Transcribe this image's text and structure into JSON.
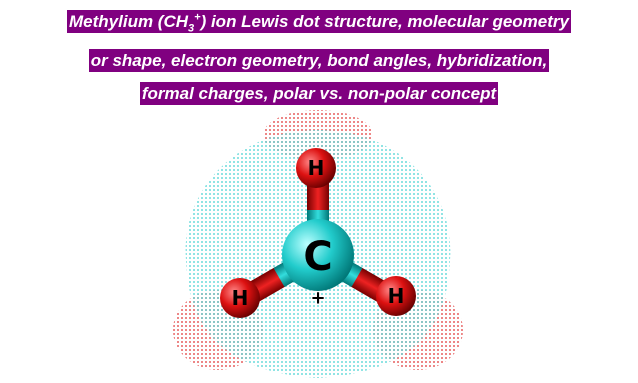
{
  "title": {
    "lines": [
      {
        "prefix": "Methylium (CH",
        "sub": "3",
        "sup": "+",
        "suffix": ") ion Lewis dot structure, molecular geometry"
      },
      {
        "text": "or shape, electron geometry, bond angles, hybridization,"
      },
      {
        "text": "formal charges, polar vs. non-polar concept"
      }
    ]
  },
  "molecule": {
    "central": "C",
    "hydrogens": [
      "H",
      "H",
      "H"
    ],
    "charge": "+"
  }
}
